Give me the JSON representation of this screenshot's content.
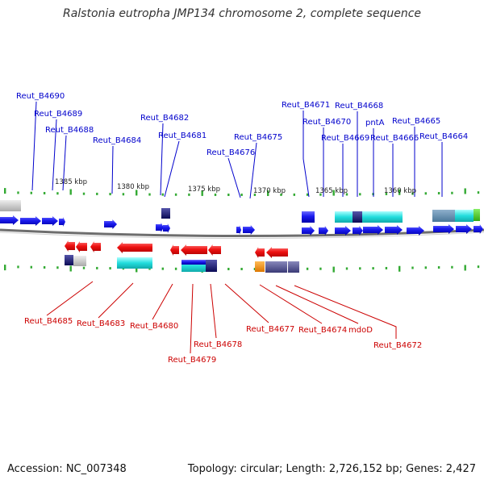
{
  "title": "Ralstonia eutropha JMP134 chromosome 2, complete sequence",
  "footer": {
    "accession": "Accession: NC_007348",
    "summary": "Topology: circular; Length: 2,726,152 bp; Genes: 2,427"
  },
  "colors": {
    "forward_label": "#0000cc",
    "reverse_label": "#cc0000",
    "backbone": "#888888",
    "tick": "#33aa33"
  },
  "scale_ticks": [
    "1385 kbp",
    "1380 kbp",
    "1375 kbp",
    "1370 kbp",
    "1365 kbp",
    "1360 kbp"
  ],
  "forward_labels": [
    "Reut_B4690",
    "Reut_B4689",
    "Reut_B4688",
    "Reut_B4684",
    "Reut_B4682",
    "Reut_B4681",
    "Reut_B4676",
    "Reut_B4675",
    "Reut_B4671",
    "Reut_B4670",
    "Reut_B4669",
    "Reut_B4668",
    "pntA",
    "Reut_B4666",
    "Reut_B4665",
    "Reut_B4664"
  ],
  "reverse_labels": [
    "Reut_B4685",
    "Reut_B4683",
    "Reut_B4680",
    "Reut_B4679",
    "Reut_B4678",
    "Reut_B4677",
    "Reut_B4674",
    "mdoD",
    "Reut_B4672"
  ]
}
